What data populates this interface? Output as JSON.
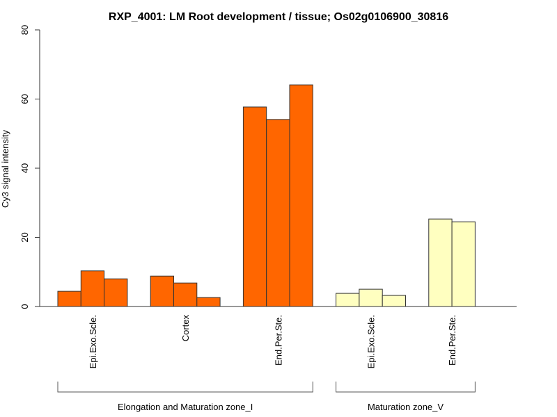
{
  "chart_data": {
    "type": "bar",
    "title": "RXP_4001: LM Root development / tissue; Os02g0106900_30816",
    "xlabel": "",
    "ylabel": "Cy3 signal intensity",
    "ylim": [
      0,
      80
    ],
    "yticks": [
      0,
      20,
      40,
      60,
      80
    ],
    "grid": false,
    "legend": "none",
    "groups": [
      {
        "name": "Elongation and Maturation zone_I",
        "color": "#ff6600",
        "categories": [
          {
            "label": "Epi.Exo.Scle.",
            "values": [
              4.4,
              10.3,
              8.0
            ]
          },
          {
            "label": "Cortex",
            "values": [
              8.8,
              6.8,
              2.6
            ]
          },
          {
            "label": "End.Per.Ste.",
            "values": [
              57.7,
              54.1,
              64.1
            ]
          }
        ]
      },
      {
        "name": "Maturation zone_V",
        "color": "#ffffc0",
        "categories": [
          {
            "label": "Epi.Exo.Scle.",
            "values": [
              3.8,
              5.0,
              3.2
            ]
          },
          {
            "label": "End.Per.Ste.",
            "values": [
              25.3,
              24.5
            ]
          }
        ]
      }
    ]
  }
}
